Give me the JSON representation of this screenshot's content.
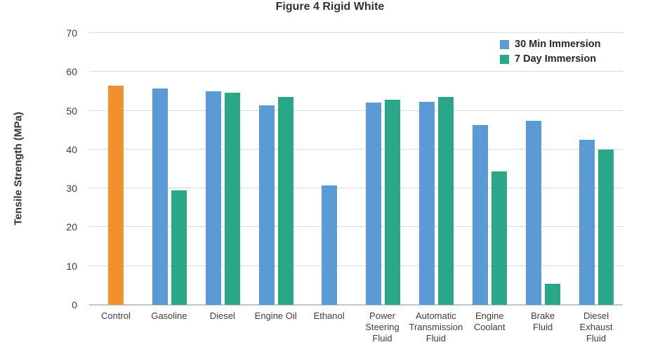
{
  "chart_data": {
    "type": "bar",
    "title": "Figure 4 Rigid White",
    "ylabel": "Tensile Strength (MPa)",
    "ylim": [
      0,
      70
    ],
    "yticks": [
      0,
      10,
      20,
      30,
      40,
      50,
      60,
      70
    ],
    "grid": true,
    "legend_position": "top-right",
    "categories": [
      "Control",
      "Gasoline",
      "Diesel",
      "Engine Oil",
      "Ethanol",
      "Power\nSteering\nFluid",
      "Automatic\nTransmission\nFluid",
      "Engine\nCoolant",
      "Brake\nFluid",
      "Diesel\nExhaust\nFluid"
    ],
    "series": [
      {
        "name": "Control",
        "color": "#F0912D",
        "values": [
          56.5,
          null,
          null,
          null,
          null,
          null,
          null,
          null,
          null,
          null
        ]
      },
      {
        "name": "30 Min Immersion",
        "color": "#5B9BD5",
        "values": [
          null,
          55.8,
          55.0,
          51.3,
          30.8,
          52.1,
          52.3,
          46.3,
          47.4,
          42.5
        ]
      },
      {
        "name": "7 Day Immersion",
        "color": "#29A786",
        "values": [
          null,
          29.5,
          54.7,
          53.5,
          null,
          52.8,
          53.6,
          34.3,
          5.5,
          39.9
        ]
      }
    ],
    "legend": [
      {
        "label": "30 Min Immersion",
        "color": "#5B9BD5"
      },
      {
        "label": "7 Day Immersion",
        "color": "#29A786"
      }
    ],
    "colors": {
      "gridline": "#D9D9D9",
      "axis_line": "#C6C6C6",
      "tick_text": "#3D3D3D",
      "title_text": "#333333"
    }
  }
}
